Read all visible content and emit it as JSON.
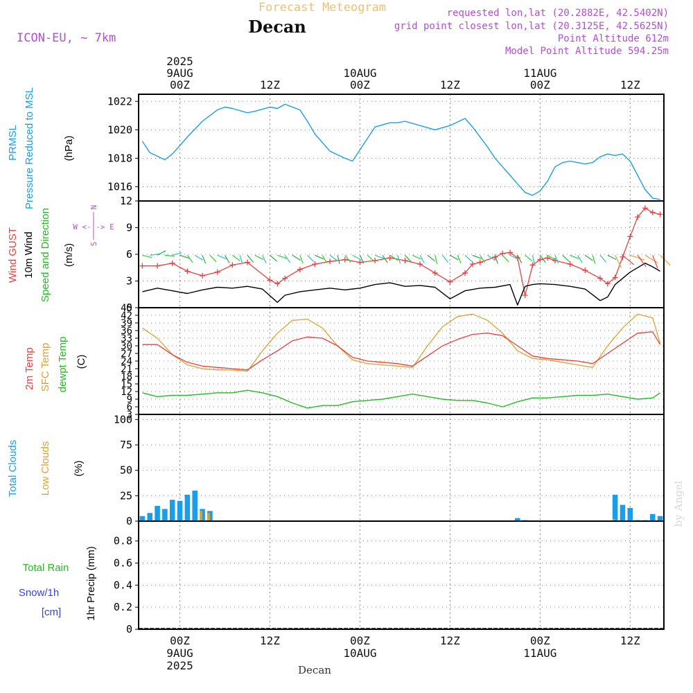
{
  "header": {
    "title": "Forecast Meteogram",
    "location": "Decan",
    "model": "ICON-EU, ~ 7km",
    "requested": "requested lon,lat (20.2882E, 42.5402N)",
    "grid_point": "grid point closest lon,lat (20.3125E, 42.5625N)",
    "point_altitude": "Point Altitude 612m",
    "model_altitude": "Model Point Altitude 594.25m",
    "bottom_location": "Decan",
    "watermark": "by Angel"
  },
  "time_axis": {
    "top_labels": [
      {
        "lines": [
          "2025",
          "9AUG",
          "00Z"
        ]
      },
      {
        "lines": [
          "12Z"
        ]
      },
      {
        "lines": [
          "10AUG",
          "00Z"
        ]
      },
      {
        "lines": [
          "12Z"
        ]
      },
      {
        "lines": [
          "11AUG",
          "00Z"
        ]
      },
      {
        "lines": [
          "12Z"
        ]
      }
    ],
    "bottom_labels": [
      {
        "lines": [
          "00Z",
          "9AUG",
          "2025"
        ]
      },
      {
        "lines": [
          "12Z"
        ]
      },
      {
        "lines": [
          "00Z",
          "10AUG"
        ]
      },
      {
        "lines": [
          "12Z"
        ]
      },
      {
        "lines": [
          "00Z",
          "11AUG"
        ]
      },
      {
        "lines": [
          "12Z"
        ]
      }
    ],
    "tick_hours": [
      0,
      12,
      24,
      36,
      48,
      60
    ],
    "range_hours": [
      -5.5,
      64.5
    ]
  },
  "panels": {
    "pressure": {
      "labels": [
        "PRMSL",
        "Pressure Reduced to MSL"
      ],
      "unit": "(hPa)",
      "ylim": [
        1015,
        1022.5
      ],
      "ticks": [
        "1016",
        "1018",
        "1020",
        "1022"
      ]
    },
    "wind": {
      "labels": [
        "Wind GUST",
        "10m Wind",
        "Speed and Direction"
      ],
      "unit": "(m/s)",
      "compass": [
        "N",
        "W <-|-> E",
        "S"
      ],
      "ylim": [
        0,
        12
      ],
      "ticks": [
        "0",
        "3",
        "6",
        "9",
        "12"
      ]
    },
    "temperature": {
      "labels": [
        "2m Temp",
        "SFC Temp",
        "dewpt Temp"
      ],
      "unit": "(C)",
      "ylim": [
        3,
        45
      ],
      "ticks": [
        "3",
        "6",
        "9",
        "12",
        "15",
        "18",
        "21",
        "24",
        "27",
        "30",
        "33",
        "36",
        "39",
        "42",
        "45"
      ]
    },
    "clouds": {
      "labels": [
        "Total Clouds",
        "Low Clouds"
      ],
      "unit": "(%)",
      "ylim": [
        0,
        105
      ],
      "ticks": [
        "0",
        "25",
        "50",
        "75",
        "100"
      ]
    },
    "precip": {
      "labels": [
        "Total Rain",
        "Snow/1h",
        "[cm]"
      ],
      "unit": "1hr Precip (mm)",
      "ylim": [
        0,
        0.98
      ],
      "ticks": [
        "0",
        "0.2",
        "0.4",
        "0.6",
        "0.8"
      ]
    }
  },
  "colors": {
    "pressure": "#1a9ee8",
    "gust": "#e84040",
    "wind": "#000000",
    "barb": "#2ad12a",
    "temp2m": "#e84040",
    "sfc": "#e0a030",
    "dewpt": "#22bb22",
    "total_clouds": "#1a9ee8",
    "low_clouds": "#e0a030",
    "rain": "#22bb22",
    "snow": "#3344dd",
    "magenta": "#b050d0",
    "title": "#f0c070",
    "grid": "#888888"
  },
  "chart_data": [
    {
      "type": "line",
      "name": "PRMSL",
      "x": [
        -5,
        -4,
        -2,
        -1,
        1,
        3,
        5,
        6,
        7,
        9,
        10,
        12,
        13,
        14,
        15,
        16,
        17,
        18,
        20,
        22,
        23,
        24,
        26,
        28,
        29,
        30,
        32,
        34,
        36,
        38,
        39,
        40,
        41,
        42,
        43,
        44,
        45,
        46,
        47,
        48,
        49,
        50,
        51,
        52,
        53,
        54,
        55,
        56,
        57,
        58,
        59,
        60,
        61,
        62,
        63,
        64
      ],
      "y": [
        1019.2,
        1018.4,
        1017.9,
        1018.3,
        1019.5,
        1020.6,
        1021.4,
        1021.6,
        1021.5,
        1021.2,
        1021.3,
        1021.6,
        1021.5,
        1021.8,
        1021.6,
        1021.4,
        1020.6,
        1019.7,
        1018.5,
        1018.0,
        1017.8,
        1018.6,
        1020.2,
        1020.5,
        1020.5,
        1020.6,
        1020.3,
        1020.0,
        1020.3,
        1020.8,
        1020.2,
        1019.5,
        1018.8,
        1018.0,
        1017.4,
        1016.8,
        1016.2,
        1015.6,
        1015.4,
        1015.7,
        1016.4,
        1017.4,
        1017.7,
        1017.8,
        1017.7,
        1017.6,
        1017.7,
        1018.1,
        1018.3,
        1018.2,
        1018.3,
        1017.8,
        1016.8,
        1015.8,
        1015.2,
        1015.1
      ]
    },
    {
      "type": "line",
      "name": "Wind GUST",
      "x": [
        -5,
        -3,
        -1,
        1,
        3,
        5,
        7,
        9,
        12,
        13,
        14,
        16,
        18,
        20,
        22,
        24,
        26,
        28,
        30,
        32,
        34,
        36,
        38,
        39,
        40,
        42,
        43,
        44,
        45,
        46,
        47,
        48,
        49,
        50,
        52,
        54,
        56,
        57,
        58,
        59,
        60,
        61,
        62,
        63,
        64
      ],
      "y": [
        4.7,
        4.7,
        5.0,
        4.1,
        3.6,
        4.0,
        4.8,
        5.1,
        3.1,
        2.7,
        3.3,
        4.3,
        4.9,
        5.2,
        5.4,
        5.1,
        5.3,
        5.6,
        5.3,
        4.9,
        3.9,
        2.9,
        3.9,
        4.9,
        5.1,
        5.7,
        6.1,
        6.2,
        5.6,
        1.4,
        4.8,
        5.4,
        5.6,
        5.3,
        4.9,
        4.2,
        3.3,
        2.7,
        3.4,
        5.7,
        8.0,
        10.2,
        11.2,
        10.7,
        10.5
      ]
    },
    {
      "type": "line",
      "name": "10m Wind",
      "x": [
        -5,
        -3,
        -1,
        1,
        3,
        5,
        7,
        9,
        11,
        13,
        14,
        16,
        18,
        20,
        22,
        24,
        26,
        28,
        30,
        32,
        34,
        36,
        38,
        40,
        42,
        44,
        45,
        46,
        47,
        48,
        50,
        52,
        54,
        56,
        57,
        58,
        60,
        62,
        63,
        64
      ],
      "y": [
        1.8,
        2.2,
        1.9,
        1.6,
        2.0,
        2.3,
        2.2,
        2.4,
        2.1,
        0.6,
        1.4,
        1.8,
        2.0,
        2.2,
        2.0,
        2.2,
        2.6,
        2.8,
        2.4,
        2.5,
        2.3,
        1.0,
        1.9,
        2.2,
        2.3,
        2.6,
        0.3,
        2.4,
        2.6,
        2.7,
        2.6,
        2.4,
        2.1,
        0.8,
        1.2,
        2.6,
        4.0,
        5.0,
        4.6,
        4.1
      ]
    },
    {
      "type": "line",
      "name": "2m Temp",
      "x": [
        -5,
        -3,
        -1,
        1,
        3,
        5,
        7,
        9,
        11,
        13,
        15,
        17,
        19,
        21,
        23,
        25,
        27,
        29,
        31,
        33,
        35,
        37,
        39,
        41,
        43,
        45,
        47,
        49,
        51,
        53,
        55,
        57,
        59,
        61,
        63,
        64
      ],
      "y": [
        30.5,
        30.5,
        26.5,
        23.5,
        22.0,
        21.5,
        21.0,
        20.5,
        24.5,
        28.0,
        32.0,
        33.5,
        33.0,
        30.0,
        25.5,
        24.0,
        23.5,
        23.0,
        22.0,
        26.0,
        30.0,
        32.5,
        34.5,
        35.0,
        34.0,
        30.0,
        26.0,
        25.0,
        24.5,
        24.0,
        23.0,
        27.0,
        31.0,
        35.0,
        35.5,
        30.5
      ]
    },
    {
      "type": "line",
      "name": "SFC Temp",
      "x": [
        -5,
        -3,
        -1,
        1,
        3,
        5,
        7,
        9,
        11,
        13,
        15,
        17,
        19,
        21,
        23,
        25,
        27,
        29,
        31,
        33,
        35,
        37,
        39,
        41,
        43,
        45,
        47,
        49,
        51,
        53,
        55,
        57,
        59,
        61,
        63,
        64
      ],
      "y": [
        37.0,
        33.0,
        26.5,
        22.5,
        21.0,
        20.5,
        20.5,
        20.0,
        28.0,
        35.0,
        40.0,
        40.5,
        37.0,
        30.0,
        24.5,
        23.0,
        22.5,
        22.0,
        21.5,
        30.0,
        37.5,
        41.5,
        42.5,
        40.0,
        35.0,
        28.0,
        25.0,
        24.5,
        23.5,
        22.5,
        21.5,
        30.0,
        37.0,
        42.5,
        41.0,
        31.0
      ]
    },
    {
      "type": "line",
      "name": "dewpt Temp",
      "x": [
        -5,
        -3,
        -1,
        1,
        3,
        5,
        7,
        9,
        11,
        13,
        15,
        17,
        19,
        21,
        23,
        25,
        27,
        29,
        31,
        33,
        35,
        37,
        39,
        41,
        43,
        45,
        47,
        49,
        51,
        53,
        55,
        57,
        59,
        61,
        63,
        64
      ],
      "y": [
        11.5,
        10.0,
        10.5,
        10.5,
        11.0,
        11.5,
        11.5,
        12.5,
        11.5,
        10.0,
        7.5,
        5.5,
        6.5,
        6.5,
        8.0,
        8.5,
        9.0,
        10.0,
        11.0,
        10.0,
        9.0,
        8.5,
        8.5,
        7.5,
        6.0,
        8.0,
        9.5,
        9.5,
        10.0,
        10.5,
        10.5,
        11.0,
        10.0,
        9.0,
        9.5,
        11.5
      ]
    },
    {
      "type": "bar",
      "name": "Total Clouds",
      "x": [
        -5,
        -4,
        -3,
        -2,
        -1,
        0,
        1,
        2,
        3,
        4,
        45,
        46,
        58,
        59,
        60,
        61,
        62,
        63,
        64
      ],
      "y": [
        5,
        8,
        15,
        12,
        21,
        20,
        26,
        30,
        12,
        10,
        3,
        1,
        26,
        16,
        13,
        1,
        1,
        7,
        5
      ]
    },
    {
      "type": "bar",
      "name": "Low Clouds",
      "x": [
        3,
        4,
        58
      ],
      "y": [
        10,
        8,
        2
      ]
    },
    {
      "type": "bar",
      "name": "Total Rain",
      "x": [],
      "y": []
    }
  ]
}
